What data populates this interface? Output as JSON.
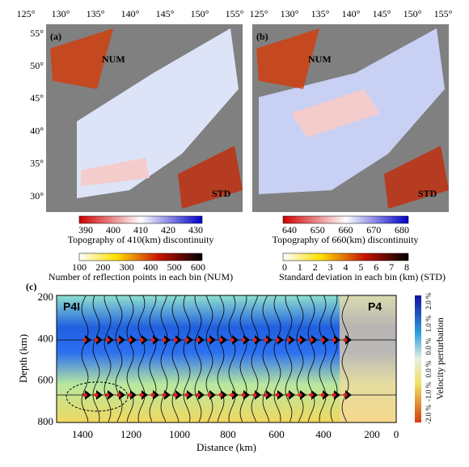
{
  "panel_a": {
    "label": "(a)",
    "lon_ticks": [
      "125°",
      "130°",
      "135°",
      "140°",
      "145°",
      "150°",
      "155°"
    ],
    "lat_ticks": [
      "55°",
      "50°",
      "45°",
      "40°",
      "35°",
      "30°"
    ],
    "num_label": "NUM",
    "std_label": "STD"
  },
  "panel_b": {
    "label": "(b)",
    "lon_ticks": [
      "125°",
      "130°",
      "135°",
      "140°",
      "145°",
      "150°",
      "155°"
    ],
    "num_label": "NUM",
    "std_label": "STD"
  },
  "colorbars": {
    "topo410": {
      "ticks": [
        "390",
        "400",
        "410",
        "420",
        "430"
      ],
      "title": "Topography of 410(km) discontinuity"
    },
    "topo660": {
      "ticks": [
        "640",
        "650",
        "660",
        "670",
        "680"
      ],
      "title": "Topography of 660(km) discontinuity"
    },
    "num": {
      "ticks": [
        "100",
        "200",
        "300",
        "400",
        "500",
        "600"
      ],
      "title": "Number of reflection points in each bin (NUM)"
    },
    "std": {
      "ticks": [
        "0",
        "1",
        "2",
        "3",
        "4",
        "5",
        "6",
        "7",
        "8"
      ],
      "title": "Standard deviation in each bin (km) (STD)"
    }
  },
  "panel_c": {
    "label": "(c)",
    "left_label": "P4I",
    "right_label": "P4",
    "y_label": "Depth (km)",
    "x_label": "Distance (km)",
    "y_ticks": [
      "200",
      "400",
      "600",
      "800"
    ],
    "x_ticks": [
      "1400",
      "1200",
      "1000",
      "800",
      "600",
      "400",
      "200",
      "0"
    ],
    "cbar_ticks": [
      "-2.0 %",
      "-1.0 %",
      "0.0 %",
      "0.0 %",
      "1.0 %",
      "2.0 %"
    ],
    "cbar_title": "Velocity perturbation"
  }
}
